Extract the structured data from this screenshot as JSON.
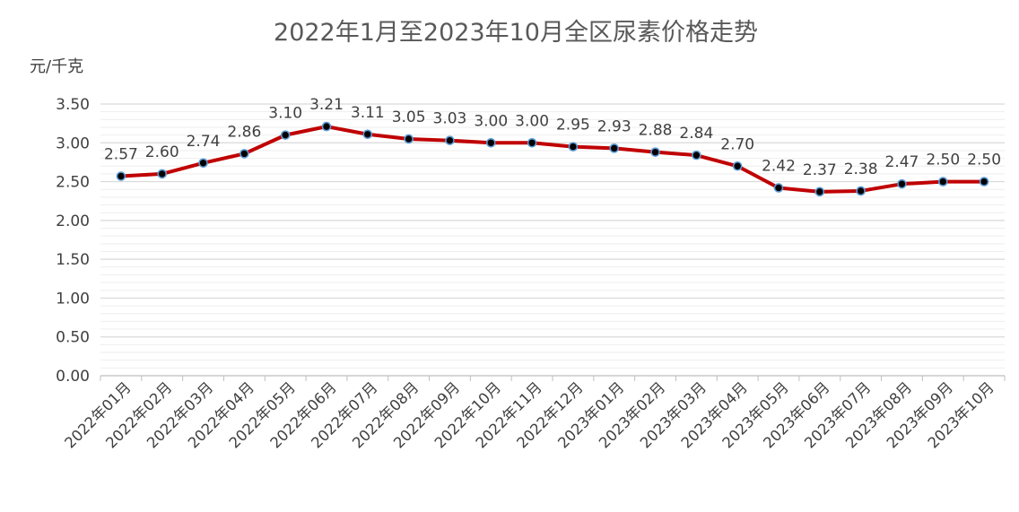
{
  "chart_data": {
    "type": "line",
    "title": "2022年1月至2023年10月全区尿素价格走势",
    "ylabel": "元/千克",
    "xlabel": "",
    "ylim": [
      0,
      3.5
    ],
    "yticks": [
      "0.00",
      "0.50",
      "1.00",
      "1.50",
      "2.00",
      "2.50",
      "3.00",
      "3.50"
    ],
    "grid": true,
    "categories": [
      "2022年01月",
      "2022年02月",
      "2022年03月",
      "2022年04月",
      "2022年05月",
      "2022年06月",
      "2022年07月",
      "2022年08月",
      "2022年09月",
      "2022年10月",
      "2022年11月",
      "2022年12月",
      "2023年01月",
      "2023年02月",
      "2023年03月",
      "2023年04月",
      "2023年05月",
      "2023年06月",
      "2023年07月",
      "2023年08月",
      "2023年09月",
      "2023年10月"
    ],
    "values": [
      2.57,
      2.6,
      2.74,
      2.86,
      3.1,
      3.21,
      3.11,
      3.05,
      3.03,
      3.0,
      3.0,
      2.95,
      2.93,
      2.88,
      2.84,
      2.7,
      2.42,
      2.37,
      2.38,
      2.47,
      2.5,
      2.5
    ],
    "data_labels": [
      "2.57",
      "2.60",
      "2.74",
      "2.86",
      "3.10",
      "3.21",
      "3.11",
      "3.05",
      "3.03",
      "3.00",
      "3.00",
      "2.95",
      "2.93",
      "2.88",
      "2.84",
      "2.70",
      "2.42",
      "2.37",
      "2.38",
      "2.47",
      "2.50",
      "2.50"
    ],
    "colors": {
      "line": "#c00000",
      "marker_fill": "#000000",
      "marker_edge": "#5b9bd5",
      "grid": "#d9d9d9",
      "text": "#404040"
    }
  }
}
